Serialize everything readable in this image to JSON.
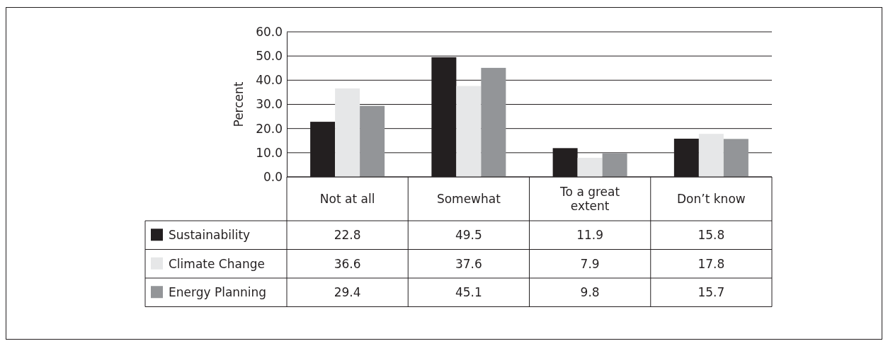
{
  "chart_data": {
    "type": "bar",
    "ylabel": "Percent",
    "categories": [
      "Not at all",
      "Somewhat",
      "To a great extent",
      "Don’t know"
    ],
    "series": [
      {
        "name": "Sustainability",
        "color": "#231f20",
        "values": [
          22.8,
          49.5,
          11.9,
          15.8
        ]
      },
      {
        "name": "Climate Change",
        "color": "#e6e7e8",
        "values": [
          36.6,
          37.6,
          7.9,
          17.8
        ]
      },
      {
        "name": "Energy Planning",
        "color": "#939598",
        "values": [
          29.4,
          45.1,
          9.8,
          15.7
        ]
      }
    ],
    "ylim": [
      0,
      60
    ],
    "yticks": [
      {
        "value": 0,
        "label": "0.0"
      },
      {
        "value": 10,
        "label": "10.0"
      },
      {
        "value": 20,
        "label": "20.0"
      },
      {
        "value": 30,
        "label": "30.0"
      },
      {
        "value": 40,
        "label": "40.0"
      },
      {
        "value": 50,
        "label": "50.0"
      },
      {
        "value": 60,
        "label": "60.0"
      }
    ],
    "grid": "y",
    "legend": "bottom",
    "data_labels": true
  }
}
